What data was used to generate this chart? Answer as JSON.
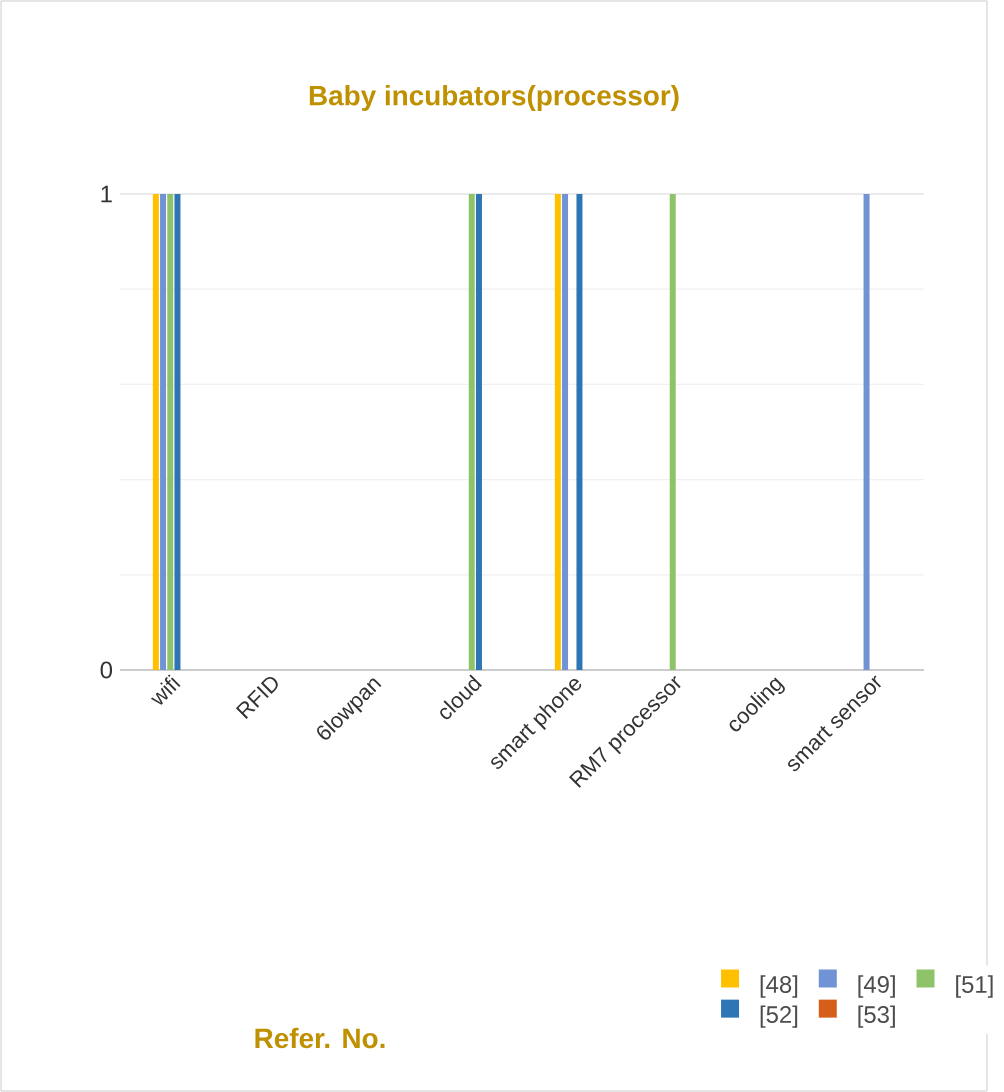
{
  "chart_data": {
    "type": "bar",
    "title": "Baby incubators(processor)",
    "legend_title": "Refer. No.",
    "categories": [
      "wifi",
      "RFID",
      "6lowpan",
      "cloud",
      "smart phone",
      "RM7 processor",
      "cooling",
      "smart sensor"
    ],
    "series": [
      {
        "name": "[48]",
        "color": "#ffc000",
        "values": [
          1,
          0,
          0,
          0,
          1,
          0,
          0,
          0
        ]
      },
      {
        "name": "[49]",
        "color": "#6f93d4",
        "values": [
          1,
          0,
          0,
          0,
          1,
          0,
          0,
          1
        ]
      },
      {
        "name": "[51]",
        "color": "#8fc36a",
        "values": [
          1,
          0,
          0,
          1,
          0,
          1,
          0,
          0
        ]
      },
      {
        "name": "[52]",
        "color": "#2e75b6",
        "values": [
          1,
          0,
          0,
          1,
          1,
          0,
          0,
          0
        ]
      },
      {
        "name": "[53]",
        "color": "#d55f1a",
        "values": [
          0,
          0,
          0,
          0,
          0,
          0,
          0,
          0
        ]
      }
    ],
    "ylim": [
      0,
      1
    ],
    "yticks": [
      0,
      1
    ],
    "grid": "y",
    "legend": "bottom"
  }
}
